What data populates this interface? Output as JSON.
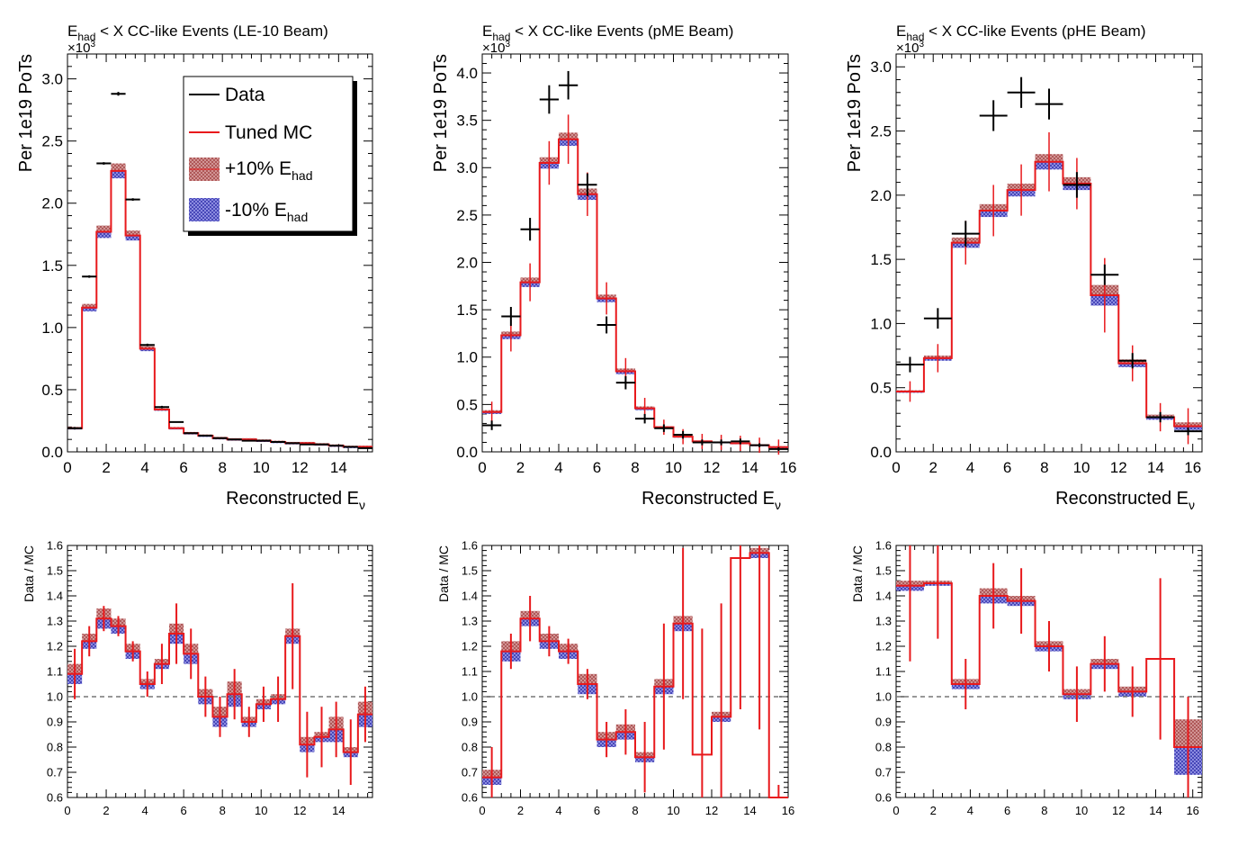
{
  "colors": {
    "data": "#000000",
    "mc": "#e8191c",
    "plus_band": "#c87878",
    "minus_band": "#4b4bd6",
    "ratio_ref": "#777777"
  },
  "legend": {
    "data": "Data",
    "mc": "Tuned MC",
    "plus_prefix": "+10% E",
    "minus_prefix": "-10% E",
    "sub": "had"
  },
  "chart_data": [
    {
      "type": "line",
      "id": "le10",
      "title_pre": "E",
      "title_sub": "had",
      "title_post": " < X CC-like Events (LE-10 Beam)",
      "exponent_label": "×10",
      "exponent_sup": "3",
      "ylabel": "Per 1e19 PoTs",
      "xlabel": "Reconstructed E",
      "xlabel_sub": "ν",
      "xlim": [
        0,
        15.75
      ],
      "ylim": [
        0,
        3.2
      ],
      "xticks": [
        0,
        2,
        4,
        6,
        8,
        10,
        12,
        14
      ],
      "yticks": [
        0,
        0.5,
        1.0,
        1.5,
        2.0,
        2.5,
        3.0
      ],
      "ytick_labels": [
        "0.0",
        "0.5",
        "1.0",
        "1.5",
        "2.0",
        "2.5",
        "3.0"
      ],
      "legend": "top-right",
      "edges": [
        0,
        0.75,
        1.5,
        2.25,
        3,
        3.75,
        4.5,
        5.25,
        6,
        6.75,
        7.5,
        8.25,
        9,
        9.75,
        10.5,
        11.25,
        12,
        12.75,
        13.5,
        14.25,
        15,
        15.75
      ],
      "mc": [
        0.19,
        1.16,
        1.77,
        2.26,
        1.74,
        0.83,
        0.34,
        0.19,
        0.15,
        0.13,
        0.11,
        0.1,
        0.1,
        0.09,
        0.08,
        0.07,
        0.07,
        0.06,
        0.05,
        0.04,
        0.04
      ],
      "band": [
        0.01,
        0.03,
        0.05,
        0.06,
        0.04,
        0.02,
        0.01,
        0.01,
        0.01,
        0.01,
        0.01,
        0.01,
        0.01,
        0.01,
        0.01,
        0.01,
        0.01,
        0.01,
        0.01,
        0.01,
        0.01
      ],
      "data_x": [
        0.375,
        1.125,
        1.875,
        2.625,
        3.375,
        4.125,
        4.875,
        5.625,
        6.375,
        7.125,
        7.875,
        8.625,
        9.375,
        10.125,
        10.875,
        11.625,
        12.375,
        13.125,
        13.875,
        14.625,
        15.375
      ],
      "data_y": [
        0.19,
        1.41,
        2.32,
        2.88,
        2.03,
        0.86,
        0.36,
        0.24,
        0.15,
        0.13,
        0.11,
        0.1,
        0.09,
        0.09,
        0.08,
        0.07,
        0.06,
        0.06,
        0.05,
        0.04,
        0.03
      ],
      "data_err": [
        0.01,
        0.01,
        0.01,
        0.015,
        0.01,
        0.01,
        0.01,
        0.005,
        0.005,
        0.005,
        0.005,
        0.005,
        0.005,
        0.005,
        0.005,
        0.005,
        0.005,
        0.005,
        0.005,
        0.005,
        0.005
      ],
      "ratio": {
        "ylabel": "Data / MC",
        "ylim": [
          0.6,
          1.6
        ],
        "yticks": [
          0.6,
          0.7,
          0.8,
          0.9,
          1.0,
          1.1,
          1.2,
          1.3,
          1.4,
          1.5,
          1.6
        ],
        "ytick_labels": [
          "0.6",
          "0.7",
          "0.8",
          "0.9",
          "1.0",
          "1.1",
          "1.2",
          "1.3",
          "1.4",
          "1.5",
          "1.6"
        ],
        "edges": [
          0,
          0.75,
          1.5,
          2.25,
          3,
          3.75,
          4.5,
          5.25,
          6,
          6.75,
          7.5,
          8.25,
          9,
          9.75,
          10.5,
          11.25,
          12,
          12.75,
          13.5,
          14.25,
          15,
          15.75
        ],
        "values": [
          1.09,
          1.22,
          1.31,
          1.28,
          1.18,
          1.05,
          1.13,
          1.25,
          1.17,
          1.0,
          0.92,
          1.01,
          0.9,
          0.97,
          0.99,
          1.24,
          0.81,
          0.84,
          0.87,
          0.78,
          0.93
        ],
        "err": [
          0.1,
          0.06,
          0.05,
          0.04,
          0.04,
          0.05,
          0.08,
          0.12,
          0.1,
          0.08,
          0.08,
          0.1,
          0.06,
          0.07,
          0.09,
          0.21,
          0.13,
          0.12,
          0.11,
          0.13,
          0.11
        ],
        "band_up": [
          0.04,
          0.03,
          0.04,
          0.03,
          0.03,
          0.02,
          0.02,
          0.04,
          0.04,
          0.03,
          0.04,
          0.05,
          0.02,
          0.02,
          0.02,
          0.03,
          0.03,
          0.02,
          0.05,
          0.02,
          0.05
        ],
        "band_dn": [
          0.04,
          0.03,
          0.04,
          0.03,
          0.03,
          0.02,
          0.02,
          0.04,
          0.04,
          0.03,
          0.04,
          0.05,
          0.02,
          0.02,
          0.02,
          0.03,
          0.03,
          0.02,
          0.05,
          0.02,
          0.05
        ]
      }
    },
    {
      "type": "line",
      "id": "pme",
      "title_pre": "E",
      "title_sub": "had",
      "title_post": " < X CC-like Events (pME Beam)",
      "exponent_label": "×10",
      "exponent_sup": "3",
      "ylabel": "Per 1e19 PoTs",
      "xlabel": "Reconstructed E",
      "xlabel_sub": "ν",
      "xlim": [
        0,
        16
      ],
      "ylim": [
        0,
        4.2
      ],
      "xticks": [
        0,
        2,
        4,
        6,
        8,
        10,
        12,
        14,
        16
      ],
      "yticks": [
        0,
        0.5,
        1.0,
        1.5,
        2.0,
        2.5,
        3.0,
        3.5,
        4.0
      ],
      "ytick_labels": [
        "0.0",
        "0.5",
        "1.0",
        "1.5",
        "2.0",
        "2.5",
        "3.0",
        "3.5",
        "4.0"
      ],
      "edges": [
        0,
        1,
        2,
        3,
        4,
        5,
        6,
        7,
        8,
        9,
        10,
        11,
        12,
        13,
        14,
        15,
        16
      ],
      "mc": [
        0.42,
        1.23,
        1.79,
        3.05,
        3.3,
        2.72,
        1.62,
        0.85,
        0.46,
        0.26,
        0.16,
        0.11,
        0.1,
        0.09,
        0.07,
        0.05
      ],
      "band": [
        0.02,
        0.04,
        0.05,
        0.06,
        0.07,
        0.06,
        0.04,
        0.03,
        0.02,
        0.01,
        0.01,
        0.01,
        0.01,
        0.01,
        0.01,
        0.01
      ],
      "data_x": [
        0.5,
        1.5,
        2.5,
        3.5,
        4.5,
        5.5,
        6.5,
        7.5,
        8.5,
        9.5,
        10.5,
        11.5,
        12.5,
        13.5,
        14.5,
        15.5
      ],
      "data_y": [
        0.28,
        1.43,
        2.35,
        3.72,
        3.87,
        2.82,
        1.34,
        0.73,
        0.35,
        0.25,
        0.18,
        0.1,
        0.1,
        0.11,
        0.07,
        0.03
      ],
      "data_err": [
        0.05,
        0.1,
        0.12,
        0.15,
        0.15,
        0.12,
        0.09,
        0.07,
        0.05,
        0.04,
        0.04,
        0.03,
        0.03,
        0.03,
        0.02,
        0.02
      ],
      "ratio": {
        "ylabel": "Data / MC",
        "ylim": [
          0.6,
          1.6
        ],
        "yticks": [
          0.6,
          0.7,
          0.8,
          0.9,
          1.0,
          1.1,
          1.2,
          1.3,
          1.4,
          1.5,
          1.6
        ],
        "ytick_labels": [
          "0.6",
          "0.7",
          "0.8",
          "0.9",
          "1.0",
          "1.1",
          "1.2",
          "1.3",
          "1.4",
          "1.5",
          "1.6"
        ],
        "edges": [
          0,
          1,
          2,
          3,
          4,
          5,
          6,
          7,
          8,
          9,
          10,
          11,
          12,
          13,
          14,
          15,
          16
        ],
        "values": [
          0.68,
          1.18,
          1.31,
          1.22,
          1.18,
          1.05,
          0.83,
          0.86,
          0.76,
          1.04,
          1.29,
          0.77,
          0.92,
          1.55,
          1.57,
          0.6
        ],
        "err": [
          0.12,
          0.07,
          0.09,
          0.06,
          0.05,
          0.06,
          0.07,
          0.09,
          0.14,
          0.25,
          0.3,
          0.5,
          0.45,
          0.6,
          0.7,
          0.05
        ],
        "band_up": [
          0.03,
          0.04,
          0.03,
          0.03,
          0.03,
          0.04,
          0.03,
          0.03,
          0.02,
          0.03,
          0.03,
          0.0,
          0.02,
          0.0,
          0.02,
          0.0
        ],
        "band_dn": [
          0.03,
          0.04,
          0.03,
          0.03,
          0.03,
          0.04,
          0.03,
          0.03,
          0.02,
          0.03,
          0.03,
          0.0,
          0.02,
          0.0,
          0.02,
          0.0
        ]
      }
    },
    {
      "type": "line",
      "id": "phe",
      "title_pre": "E",
      "title_sub": "had",
      "title_post": " < X CC-like Events (pHE Beam)",
      "exponent_label": "×10",
      "exponent_sup": "3",
      "ylabel": "Per 1e19 PoTs",
      "xlabel": "Reconstructed E",
      "xlabel_sub": "ν",
      "xlim": [
        0,
        16.5
      ],
      "ylim": [
        0,
        3.1
      ],
      "xticks": [
        0,
        2,
        4,
        6,
        8,
        10,
        12,
        14,
        16
      ],
      "yticks": [
        0,
        0.5,
        1.0,
        1.5,
        2.0,
        2.5,
        3.0
      ],
      "ytick_labels": [
        "0.0",
        "0.5",
        "1.0",
        "1.5",
        "2.0",
        "2.5",
        "3.0"
      ],
      "edges": [
        0,
        1.5,
        3,
        4.5,
        6,
        7.5,
        9,
        10.5,
        12,
        13.5,
        15,
        16.5
      ],
      "mc": [
        0.47,
        0.73,
        1.63,
        1.88,
        2.04,
        2.26,
        2.09,
        1.22,
        0.69,
        0.27,
        0.2
      ],
      "band": [
        0.01,
        0.02,
        0.04,
        0.05,
        0.05,
        0.06,
        0.05,
        0.08,
        0.03,
        0.02,
        0.03
      ],
      "data_x": [
        0.75,
        2.25,
        3.75,
        5.25,
        6.75,
        8.25,
        9.75,
        11.25,
        12.75,
        14.25,
        15.75
      ],
      "data_y": [
        0.68,
        1.04,
        1.7,
        2.62,
        2.8,
        2.71,
        2.08,
        1.38,
        0.71,
        0.27,
        0.16
      ],
      "data_err": [
        0.06,
        0.08,
        0.1,
        0.12,
        0.12,
        0.12,
        0.1,
        0.08,
        0.06,
        0.04,
        0.03
      ],
      "ratio": {
        "ylabel": "Data / MC",
        "ylim": [
          0.6,
          1.6
        ],
        "yticks": [
          0.6,
          0.7,
          0.8,
          0.9,
          1.0,
          1.1,
          1.2,
          1.3,
          1.4,
          1.5,
          1.6
        ],
        "ytick_labels": [
          "0.6",
          "0.7",
          "0.8",
          "0.9",
          "1.0",
          "1.1",
          "1.2",
          "1.3",
          "1.4",
          "1.5",
          "1.6"
        ],
        "edges": [
          0,
          1.5,
          3,
          4.5,
          6,
          7.5,
          9,
          10.5,
          12,
          13.5,
          15,
          16.5
        ],
        "values": [
          1.44,
          1.45,
          1.05,
          1.4,
          1.38,
          1.2,
          1.01,
          1.13,
          1.02,
          1.15,
          0.8
        ],
        "err": [
          0.3,
          0.22,
          0.1,
          0.13,
          0.13,
          0.1,
          0.11,
          0.11,
          0.1,
          0.32,
          0.2
        ],
        "band_up": [
          0.02,
          0.01,
          0.02,
          0.03,
          0.02,
          0.02,
          0.02,
          0.02,
          0.02,
          0.0,
          0.11
        ],
        "band_dn": [
          0.02,
          0.01,
          0.02,
          0.03,
          0.02,
          0.02,
          0.02,
          0.02,
          0.02,
          0.0,
          0.11
        ]
      }
    }
  ]
}
